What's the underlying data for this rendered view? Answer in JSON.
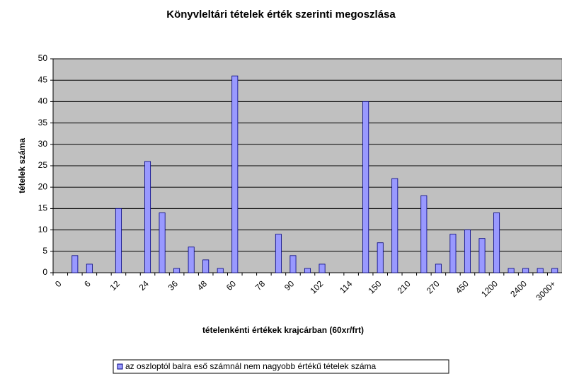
{
  "chart_data": {
    "type": "bar",
    "title": "Könyvleltári tételek érték szerinti megoszlása",
    "x_label": "tételenkénti értékek krajcárban (60xr/frt)",
    "y_label": "tételek száma",
    "categories": [
      "0",
      null,
      "6",
      null,
      "12",
      null,
      "24",
      null,
      "36",
      null,
      "48",
      null,
      "60",
      null,
      "78",
      null,
      "90",
      null,
      "102",
      null,
      "114",
      null,
      "150",
      null,
      "210",
      null,
      "270",
      null,
      "450",
      null,
      "1200",
      null,
      "2400",
      null,
      "3000+"
    ],
    "series": [
      {
        "name": "az oszloptól balra eső számnál nem nagyobb értékű tételek száma",
        "color": "#9999ff",
        "values": [
          0,
          4,
          2,
          0,
          15,
          0,
          26,
          14,
          1,
          6,
          3,
          1,
          46,
          0,
          0,
          9,
          4,
          1,
          2,
          0,
          0,
          40,
          7,
          22,
          0,
          18,
          2,
          9,
          10,
          8,
          14,
          1,
          1,
          1,
          1
        ]
      }
    ],
    "ylim": [
      0,
      50
    ],
    "yticks": [
      0,
      5,
      10,
      15,
      20,
      25,
      30,
      35,
      40,
      45,
      50
    ],
    "grid": true,
    "legend": "bottom"
  }
}
